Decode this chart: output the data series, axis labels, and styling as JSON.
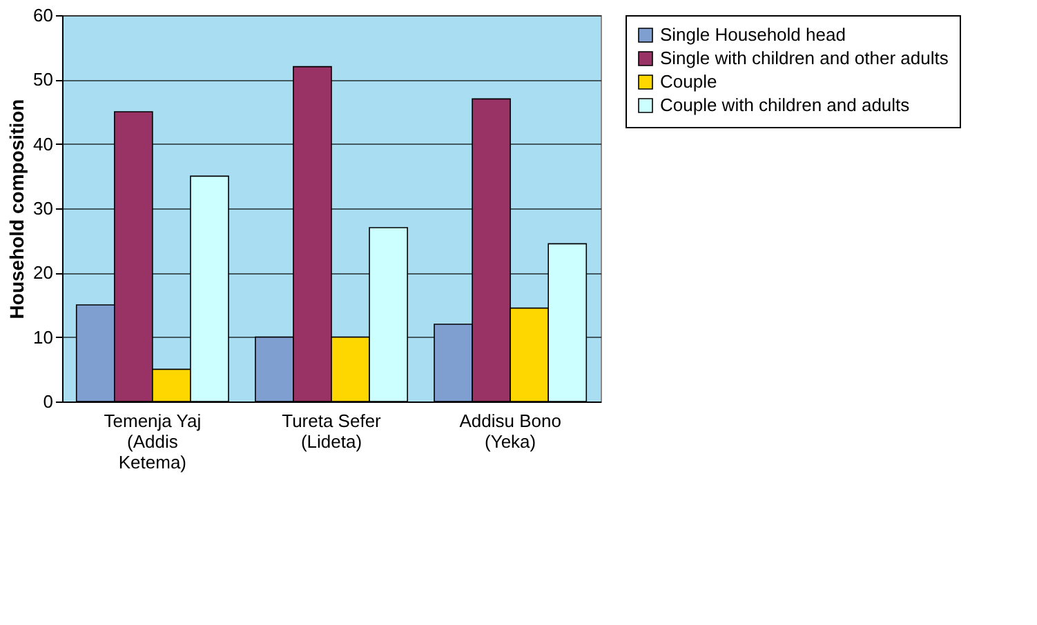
{
  "chart_data": {
    "type": "bar",
    "ylabel": "Household composition",
    "categories": [
      "Temenja Yaj\n(Addis\nKetema)",
      "Tureta Sefer\n(Lideta)",
      "Addisu Bono\n(Yeka)"
    ],
    "series": [
      {
        "name": "Single Household head",
        "color": "#7f9fd0",
        "values": [
          15,
          10,
          12
        ]
      },
      {
        "name": "Single with children and other adults",
        "color": "#993366",
        "values": [
          45,
          52,
          47
        ]
      },
      {
        "name": "Couple",
        "color": "#ffd700",
        "values": [
          5,
          10,
          14.5
        ]
      },
      {
        "name": "Couple with children and adults",
        "color": "#ccffff",
        "values": [
          35,
          27,
          24.5
        ]
      }
    ],
    "ylim": [
      0,
      60
    ],
    "yticks": [
      0,
      10,
      20,
      30,
      40,
      50,
      60
    ],
    "grid": "y",
    "legend": "right"
  }
}
